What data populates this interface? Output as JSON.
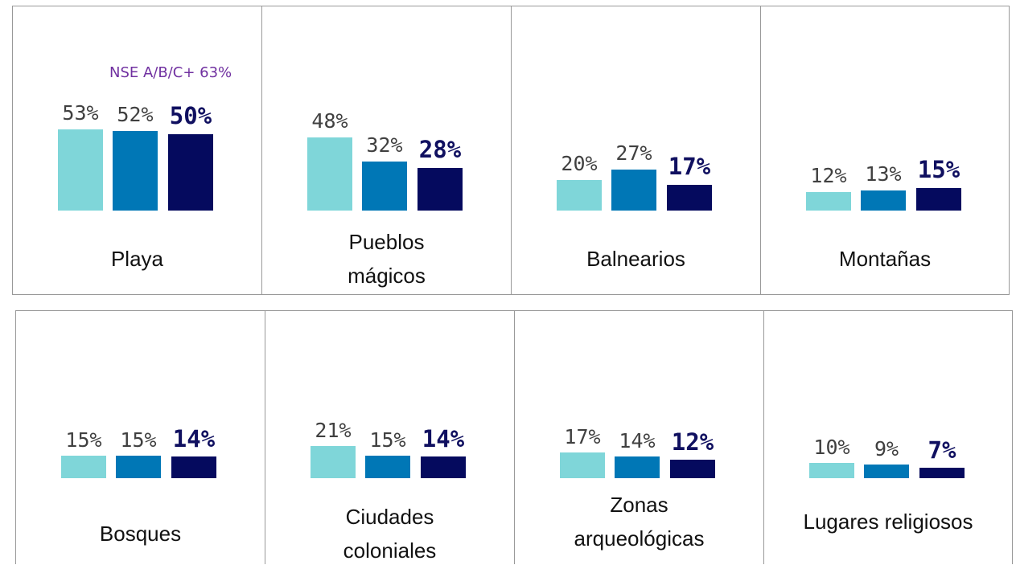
{
  "chart_data": [
    {
      "type": "bar",
      "title": "Playa",
      "values": [
        53,
        52,
        50
      ],
      "value_labels": [
        "53%",
        "52%",
        "50%"
      ],
      "colors": [
        "#7fd6d9",
        "#0077b6",
        "#050a5e"
      ],
      "annotation": "NSE A/B/C+ 63%"
    },
    {
      "type": "bar",
      "title": "Pueblos\nmágicos",
      "values": [
        48,
        32,
        28
      ],
      "value_labels": [
        "48%",
        "32%",
        "28%"
      ],
      "colors": [
        "#7fd6d9",
        "#0077b6",
        "#050a5e"
      ]
    },
    {
      "type": "bar",
      "title": "Balnearios",
      "values": [
        20,
        27,
        17
      ],
      "value_labels": [
        "20%",
        "27%",
        "17%"
      ],
      "colors": [
        "#7fd6d9",
        "#0077b6",
        "#050a5e"
      ]
    },
    {
      "type": "bar",
      "title": "Montañas",
      "values": [
        12,
        13,
        15
      ],
      "value_labels": [
        "12%",
        "13%",
        "15%"
      ],
      "colors": [
        "#7fd6d9",
        "#0077b6",
        "#050a5e"
      ]
    },
    {
      "type": "bar",
      "title": "Bosques",
      "values": [
        15,
        15,
        14
      ],
      "value_labels": [
        "15%",
        "15%",
        "14%"
      ],
      "colors": [
        "#7fd6d9",
        "#0077b6",
        "#050a5e"
      ]
    },
    {
      "type": "bar",
      "title": "Ciudades\ncoloniales",
      "values": [
        21,
        15,
        14
      ],
      "value_labels": [
        "21%",
        "15%",
        "14%"
      ],
      "colors": [
        "#7fd6d9",
        "#0077b6",
        "#050a5e"
      ]
    },
    {
      "type": "bar",
      "title": "Zonas\narqueológicas",
      "values": [
        17,
        14,
        12
      ],
      "value_labels": [
        "17%",
        "14%",
        "12%"
      ],
      "colors": [
        "#7fd6d9",
        "#0077b6",
        "#050a5e"
      ]
    },
    {
      "type": "bar",
      "title": "Lugares religiosos",
      "values": [
        10,
        9,
        7
      ],
      "value_labels": [
        "10%",
        "9%",
        "7%"
      ],
      "colors": [
        "#7fd6d9",
        "#0077b6",
        "#050a5e"
      ]
    }
  ]
}
